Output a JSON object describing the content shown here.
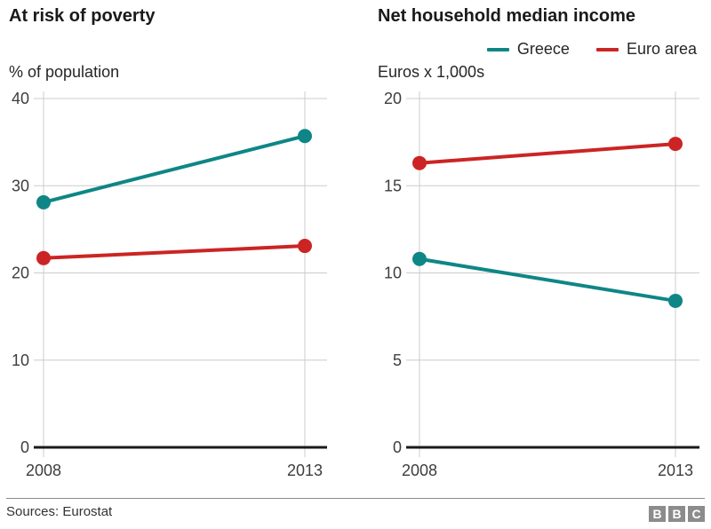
{
  "colors": {
    "greece": "#0f8686",
    "euro_area": "#cc2424",
    "grid": "#cccccc",
    "axis": "#1a1a1a",
    "tick_text": "#3d3d3d"
  },
  "chart_data": [
    {
      "type": "line",
      "title": "At risk of poverty",
      "unit_label": "% of population",
      "x_categories": [
        "2008",
        "2013"
      ],
      "ylim": [
        0,
        40
      ],
      "yticks": [
        0,
        10,
        20,
        30,
        40
      ],
      "grid": true,
      "series": [
        {
          "name": "Greece",
          "color": "#0f8686",
          "values": [
            28.1,
            35.7
          ]
        },
        {
          "name": "Euro area",
          "color": "#cc2424",
          "values": [
            21.7,
            23.1
          ]
        }
      ]
    },
    {
      "type": "line",
      "title": "Net household median income",
      "unit_label": "Euros x 1,000s",
      "x_categories": [
        "2008",
        "2013"
      ],
      "ylim": [
        0,
        20
      ],
      "yticks": [
        0,
        5,
        10,
        15,
        20
      ],
      "grid": true,
      "series": [
        {
          "name": "Greece",
          "color": "#0f8686",
          "values": [
            10.8,
            8.4
          ]
        },
        {
          "name": "Euro area",
          "color": "#cc2424",
          "values": [
            16.3,
            17.4
          ]
        }
      ]
    }
  ],
  "legend": {
    "position": "top-right",
    "entries": [
      {
        "label": "Greece",
        "color": "#0f8686"
      },
      {
        "label": "Euro area",
        "color": "#cc2424"
      }
    ]
  },
  "footer": {
    "source": "Sources: Eurostat",
    "logo_letters": [
      "B",
      "B",
      "C"
    ]
  }
}
